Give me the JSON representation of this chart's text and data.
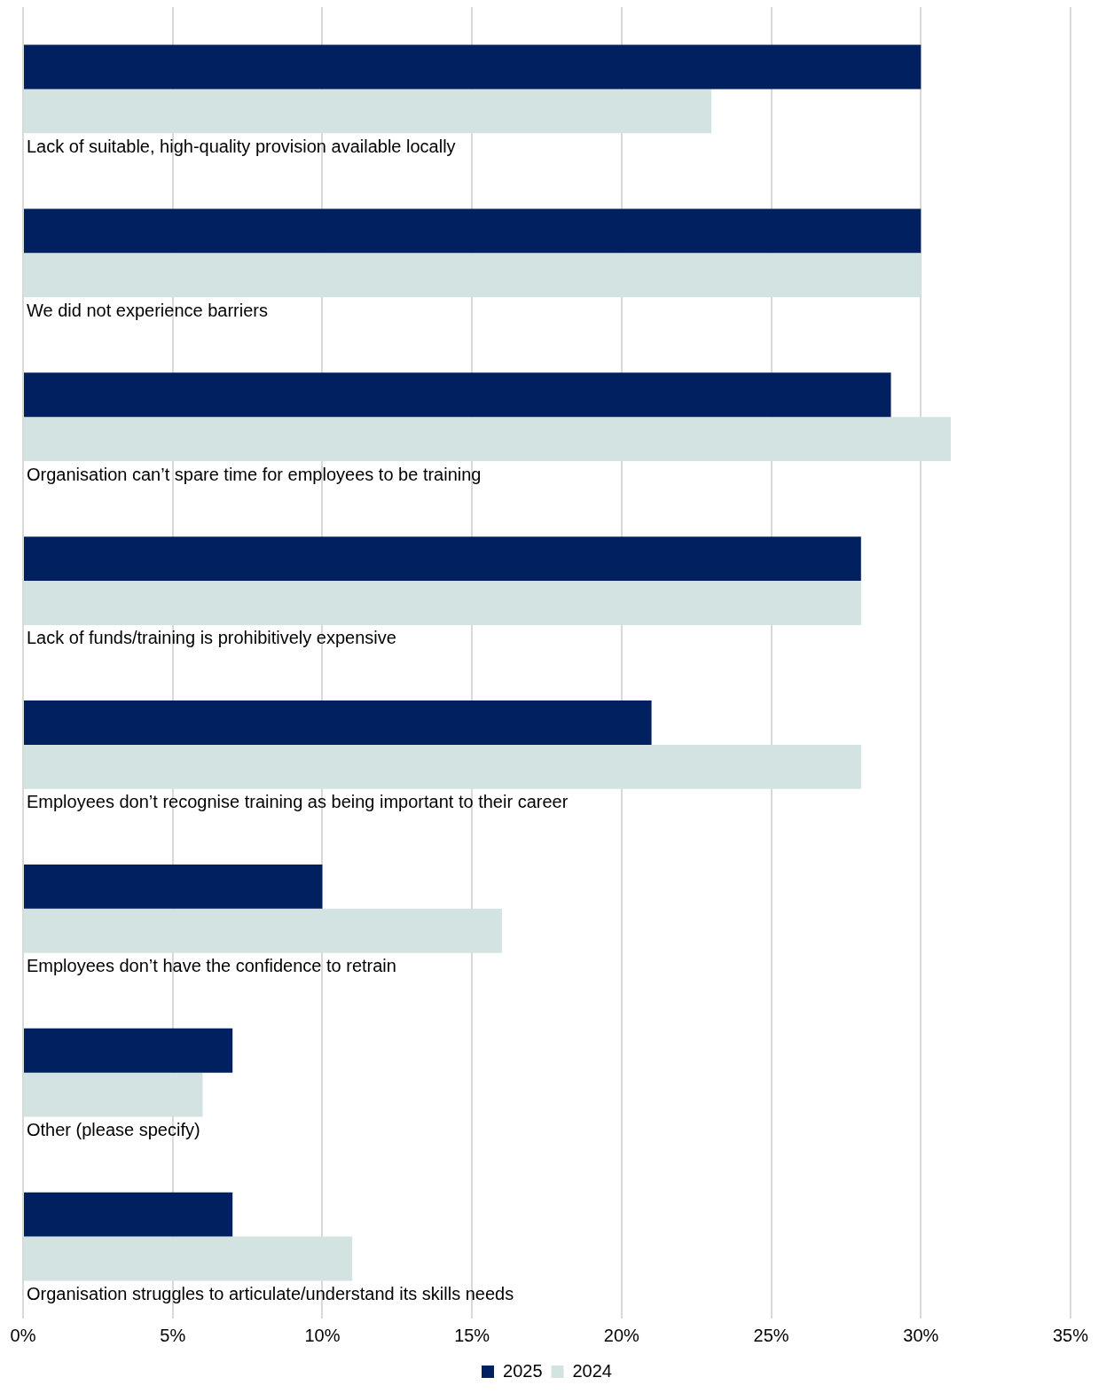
{
  "chart_data": {
    "type": "bar",
    "orientation": "horizontal",
    "categories": [
      "Lack of suitable, high-quality provision available locally",
      "We did not experience barriers",
      "Organisation can’t spare time for employees to be training",
      "Lack of funds/training is prohibitively expensive",
      "Employees don’t recognise training as being important to their career",
      "Employees don’t have the confidence to retrain",
      "Other (please specify)",
      "Organisation struggles to articulate/understand its skills needs"
    ],
    "series": [
      {
        "name": "2025",
        "color": "#002060",
        "values": [
          30,
          30,
          29,
          28,
          21,
          10,
          7,
          7
        ]
      },
      {
        "name": "2024",
        "color": "#d2e3e2",
        "values": [
          23,
          30,
          31,
          28,
          28,
          16,
          6,
          11
        ]
      }
    ],
    "xlim": [
      0,
      35
    ],
    "xticks": [
      {
        "value": 0,
        "label": "0%"
      },
      {
        "value": 5,
        "label": "5%"
      },
      {
        "value": 10,
        "label": "10%"
      },
      {
        "value": 15,
        "label": "15%"
      },
      {
        "value": 20,
        "label": "20%"
      },
      {
        "value": 25,
        "label": "25%"
      },
      {
        "value": 30,
        "label": "30%"
      },
      {
        "value": 35,
        "label": "35%"
      }
    ],
    "grid": "x",
    "legend": "bottom",
    "tick_labels": "x"
  }
}
